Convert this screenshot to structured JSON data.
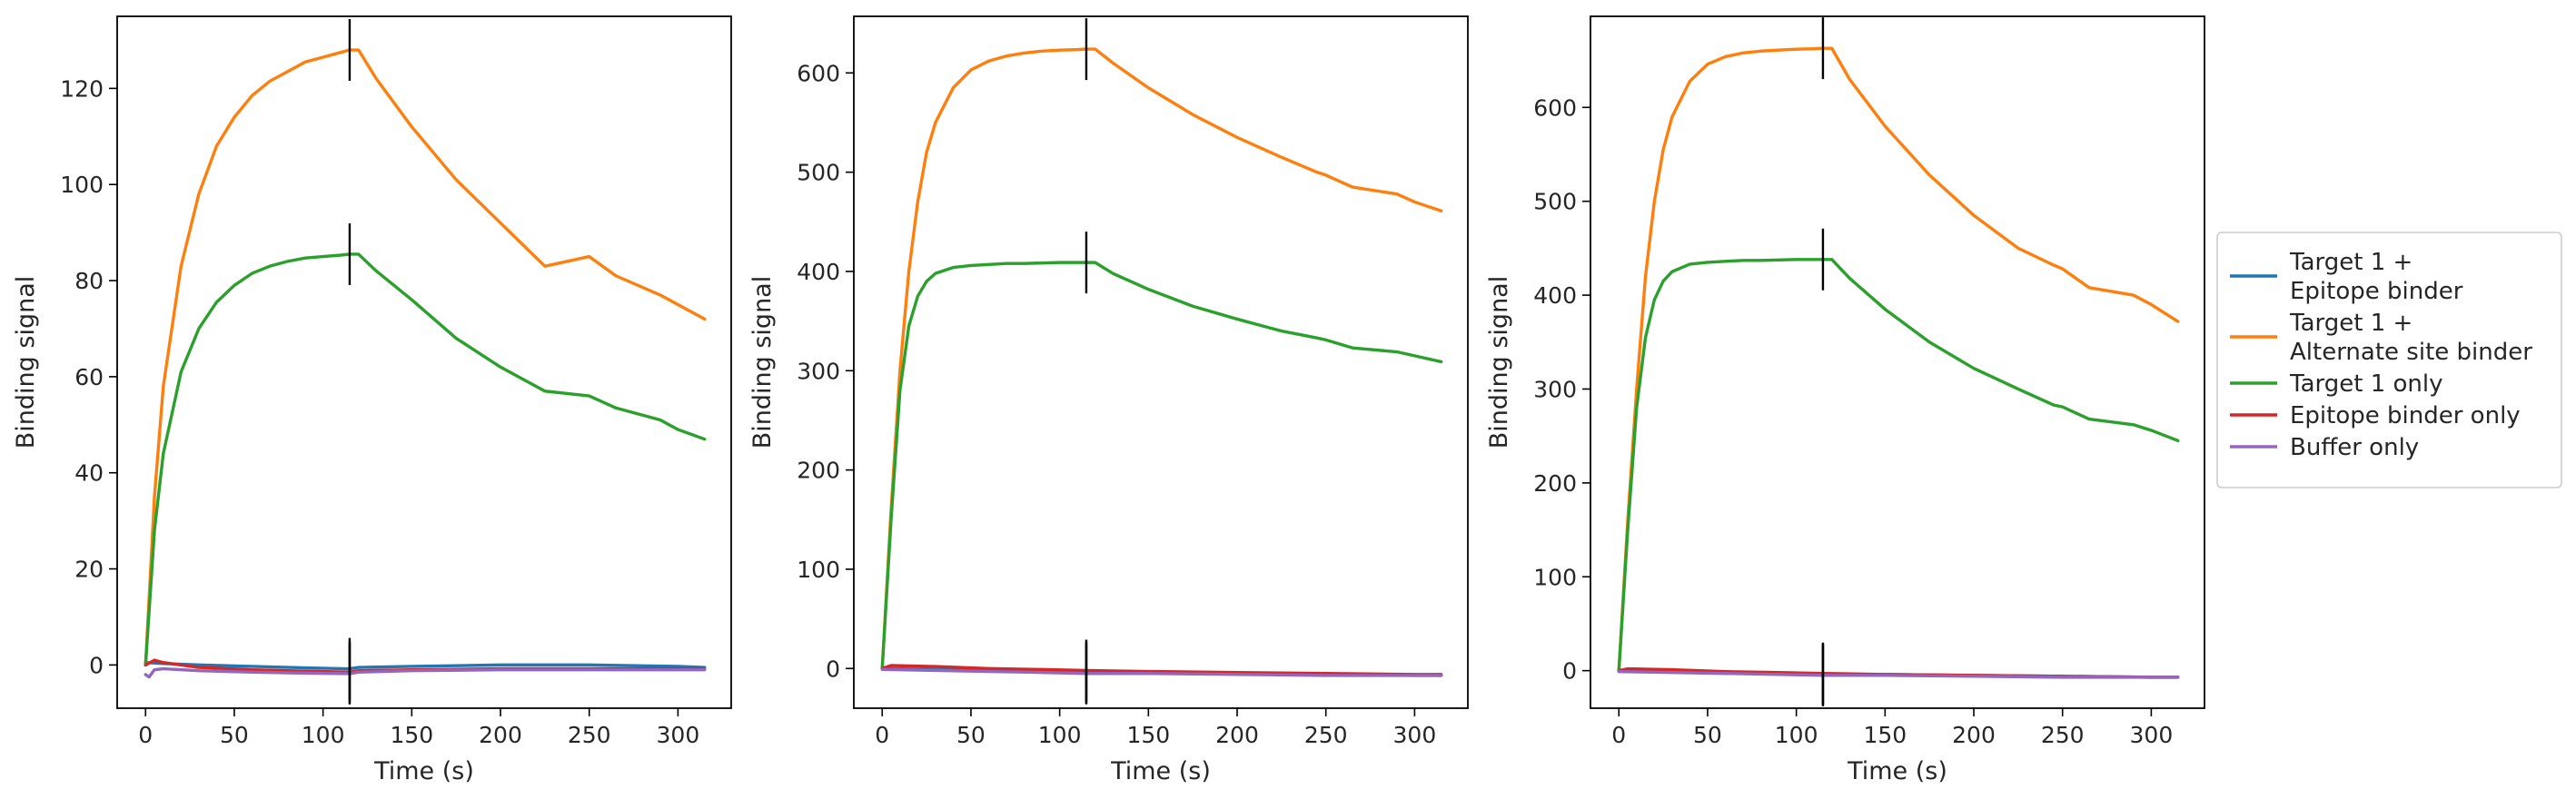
{
  "chart_data": [
    {
      "type": "line",
      "xlabel": "Time (s)",
      "ylabel": "Binding signal",
      "xlim": [
        -16,
        330
      ],
      "ylim": [
        -9,
        135
      ],
      "xticks": [
        0,
        50,
        100,
        150,
        200,
        250,
        300
      ],
      "yticks": [
        0,
        20,
        40,
        60,
        80,
        100,
        120
      ],
      "marker_x": 115,
      "series": [
        {
          "name": "Target 1 +\nEpitope binder",
          "color": "#1f77b4",
          "x": [
            0,
            10,
            30,
            60,
            90,
            115,
            120,
            150,
            200,
            250,
            300,
            315
          ],
          "y": [
            0.5,
            0.3,
            0.0,
            -0.3,
            -0.6,
            -0.8,
            -0.5,
            -0.3,
            0.0,
            0.0,
            -0.3,
            -0.5
          ]
        },
        {
          "name": "Target 1 +\nAlternate site binder",
          "color": "#ff7f0e",
          "x": [
            0,
            5,
            10,
            20,
            30,
            40,
            50,
            60,
            70,
            80,
            90,
            100,
            110,
            115,
            120,
            130,
            150,
            175,
            200,
            225,
            250,
            265,
            290,
            300,
            315
          ],
          "y": [
            0,
            35,
            58,
            83,
            98,
            108,
            114,
            118.5,
            121.5,
            123.5,
            125.5,
            126.5,
            127.5,
            128,
            128,
            122,
            112,
            101,
            92,
            83,
            85,
            81,
            77,
            75,
            72
          ]
        },
        {
          "name": "Target 1 only",
          "color": "#2ca02c",
          "x": [
            0,
            5,
            10,
            20,
            30,
            40,
            50,
            60,
            70,
            80,
            90,
            100,
            110,
            115,
            120,
            130,
            150,
            175,
            200,
            225,
            250,
            265,
            290,
            300,
            315
          ],
          "y": [
            0,
            28,
            44,
            61,
            70,
            75.5,
            79,
            81.5,
            83,
            84,
            84.7,
            85,
            85.3,
            85.5,
            85.5,
            82,
            76,
            68,
            62,
            57,
            56,
            53.5,
            51,
            49,
            47
          ]
        },
        {
          "name": "Epitope binder only",
          "color": "#d62728",
          "x": [
            0,
            5,
            10,
            30,
            60,
            90,
            115,
            120,
            150,
            200,
            250,
            300,
            315
          ],
          "y": [
            0,
            1.0,
            0.5,
            -0.5,
            -1.0,
            -1.3,
            -1.5,
            -1.2,
            -1.0,
            -0.8,
            -0.8,
            -0.8,
            -0.8
          ]
        },
        {
          "name": "Buffer only",
          "color": "#9467bd",
          "x": [
            0,
            2,
            5,
            10,
            30,
            60,
            90,
            115,
            120,
            150,
            200,
            250,
            300,
            315
          ],
          "y": [
            -2,
            -2.5,
            -1.0,
            -0.8,
            -1.2,
            -1.5,
            -1.7,
            -1.8,
            -1.5,
            -1.2,
            -1.0,
            -1.0,
            -1.0,
            -1.0
          ]
        }
      ]
    },
    {
      "type": "line",
      "xlabel": "Time (s)",
      "ylabel": "Binding signal",
      "xlim": [
        -16,
        330
      ],
      "ylim": [
        -40,
        657
      ],
      "xticks": [
        0,
        50,
        100,
        150,
        200,
        250,
        300
      ],
      "yticks": [
        0,
        100,
        200,
        300,
        400,
        500,
        600
      ],
      "marker_x": 115,
      "series": [
        {
          "name": "Target 1 +\nEpitope binder",
          "color": "#1f77b4",
          "x": [
            0,
            30,
            60,
            90,
            115,
            150,
            200,
            250,
            300,
            315
          ],
          "y": [
            0,
            -1,
            -2,
            -3,
            -4,
            -4,
            -5,
            -6,
            -7,
            -7
          ]
        },
        {
          "name": "Target 1 +\nAlternate site binder",
          "color": "#ff7f0e",
          "x": [
            0,
            5,
            10,
            15,
            20,
            25,
            30,
            40,
            50,
            60,
            70,
            80,
            90,
            100,
            110,
            115,
            120,
            130,
            150,
            175,
            200,
            225,
            245,
            250,
            265,
            290,
            300,
            315
          ],
          "y": [
            0,
            160,
            300,
            400,
            470,
            520,
            550,
            585,
            603,
            612,
            617,
            620,
            622,
            623,
            623.5,
            624,
            624,
            610,
            585,
            558,
            535,
            515,
            500,
            497,
            485,
            478,
            470,
            461
          ]
        },
        {
          "name": "Target 1 only",
          "color": "#2ca02c",
          "x": [
            0,
            5,
            10,
            15,
            20,
            25,
            30,
            40,
            50,
            60,
            70,
            80,
            90,
            100,
            110,
            115,
            120,
            130,
            150,
            175,
            200,
            225,
            245,
            250,
            265,
            290,
            300,
            315
          ],
          "y": [
            0,
            150,
            280,
            345,
            375,
            390,
            398,
            404,
            406,
            407,
            408,
            408,
            408.5,
            409,
            409,
            409,
            409,
            398,
            382,
            365,
            352,
            340,
            333,
            331,
            323,
            319,
            315,
            309
          ]
        },
        {
          "name": "Epitope binder only",
          "color": "#d62728",
          "x": [
            0,
            5,
            30,
            60,
            90,
            115,
            150,
            200,
            250,
            300,
            315
          ],
          "y": [
            0,
            3,
            2,
            0,
            -1,
            -2,
            -3,
            -4,
            -5,
            -6,
            -6
          ]
        },
        {
          "name": "Buffer only",
          "color": "#9467bd",
          "x": [
            0,
            30,
            60,
            90,
            115,
            150,
            200,
            250,
            300,
            315
          ],
          "y": [
            -1,
            -2,
            -3,
            -4,
            -5,
            -5,
            -6,
            -7,
            -7,
            -7
          ]
        }
      ]
    },
    {
      "type": "line",
      "xlabel": "Time (s)",
      "ylabel": "Binding signal",
      "xlim": [
        -16,
        330
      ],
      "ylim": [
        -40,
        697
      ],
      "xticks": [
        0,
        50,
        100,
        150,
        200,
        250,
        300
      ],
      "yticks": [
        0,
        100,
        200,
        300,
        400,
        500,
        600
      ],
      "marker_x": 115,
      "series": [
        {
          "name": "Target 1 +\nEpitope binder",
          "color": "#1f77b4",
          "x": [
            0,
            30,
            60,
            90,
            115,
            150,
            200,
            250,
            300,
            315
          ],
          "y": [
            0,
            -1,
            -2,
            -3,
            -4,
            -4,
            -5,
            -6,
            -7,
            -7
          ]
        },
        {
          "name": "Target 1 +\nAlternate site binder",
          "color": "#ff7f0e",
          "x": [
            0,
            5,
            10,
            15,
            20,
            25,
            30,
            40,
            50,
            60,
            70,
            80,
            90,
            100,
            110,
            115,
            120,
            130,
            150,
            175,
            200,
            225,
            245,
            250,
            265,
            290,
            300,
            315
          ],
          "y": [
            0,
            160,
            300,
            420,
            500,
            555,
            590,
            628,
            646,
            654,
            658,
            660,
            661,
            662,
            662.5,
            663,
            663,
            630,
            580,
            528,
            485,
            450,
            432,
            428,
            408,
            400,
            390,
            372
          ]
        },
        {
          "name": "Target 1 only",
          "color": "#2ca02c",
          "x": [
            0,
            5,
            10,
            15,
            20,
            25,
            30,
            40,
            50,
            60,
            70,
            80,
            90,
            100,
            110,
            115,
            120,
            130,
            150,
            175,
            200,
            225,
            245,
            250,
            265,
            290,
            300,
            315
          ],
          "y": [
            0,
            150,
            280,
            355,
            395,
            415,
            425,
            433,
            435,
            436,
            437,
            437,
            437.5,
            438,
            438,
            438,
            438,
            418,
            385,
            350,
            322,
            300,
            283,
            281,
            268,
            262,
            256,
            245
          ]
        },
        {
          "name": "Epitope binder only",
          "color": "#d62728",
          "x": [
            0,
            5,
            30,
            60,
            90,
            115,
            150,
            200,
            250,
            300,
            315
          ],
          "y": [
            0,
            2,
            1,
            -1,
            -2,
            -3,
            -4,
            -5,
            -6,
            -7,
            -7
          ]
        },
        {
          "name": "Buffer only",
          "color": "#9467bd",
          "x": [
            0,
            30,
            60,
            90,
            115,
            150,
            200,
            250,
            300,
            315
          ],
          "y": [
            -1,
            -2,
            -3,
            -4,
            -5,
            -5,
            -6,
            -7,
            -7,
            -7
          ]
        }
      ]
    }
  ],
  "legend": {
    "placement": "right",
    "items": [
      {
        "label": "Target 1 +\nEpitope binder",
        "color": "#1f77b4"
      },
      {
        "label": "Target 1 +\nAlternate site binder",
        "color": "#ff7f0e"
      },
      {
        "label": "Target 1 only",
        "color": "#2ca02c"
      },
      {
        "label": "Epitope binder only",
        "color": "#d62728"
      },
      {
        "label": "Buffer only",
        "color": "#9467bd"
      }
    ]
  }
}
